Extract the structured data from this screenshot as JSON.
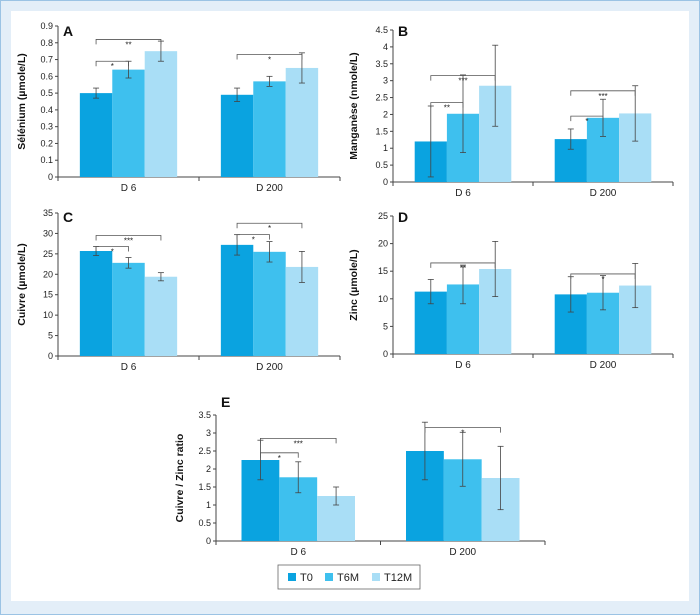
{
  "colors": {
    "T0": "#0aa3e0",
    "T6M": "#3ec0ee",
    "T12M": "#a9def6"
  },
  "legend": {
    "items": [
      "T0",
      "T6M",
      "T12M"
    ]
  },
  "chart_data": [
    {
      "panel": "A",
      "type": "bar",
      "ylabel": "Sélénium (µmole/L)",
      "ylim": [
        0,
        0.9
      ],
      "yticks": [
        "0",
        "0.1",
        "0.2",
        "0.3",
        "0.4",
        "0.5",
        "0.6",
        "0.7",
        "0.8",
        "0.9"
      ],
      "categories": [
        "D 6",
        "D 200"
      ],
      "series": [
        {
          "name": "T0",
          "values": [
            0.5,
            0.49
          ],
          "errors": [
            0.03,
            0.04
          ]
        },
        {
          "name": "T6M",
          "values": [
            0.64,
            0.57
          ],
          "errors": [
            0.05,
            0.03
          ]
        },
        {
          "name": "T12M",
          "values": [
            0.75,
            0.65
          ],
          "errors": [
            0.06,
            0.09
          ]
        }
      ],
      "brackets": [
        {
          "cat": 0,
          "from": 0,
          "to": 1,
          "level": 0.69,
          "label": "*"
        },
        {
          "cat": 0,
          "from": 0,
          "to": 2,
          "level": 0.82,
          "label": "**"
        },
        {
          "cat": 1,
          "from": 0,
          "to": 2,
          "level": 0.73,
          "label": "*"
        }
      ]
    },
    {
      "panel": "B",
      "type": "bar",
      "ylabel": "Manganèse (nmole/L)",
      "ylim": [
        0,
        4.5
      ],
      "yticks": [
        "0",
        "0.5",
        "1",
        "1.5",
        "2",
        "2.5",
        "3",
        "3.5",
        "4",
        "4.5"
      ],
      "categories": [
        "D 6",
        "D 200"
      ],
      "series": [
        {
          "name": "T0",
          "values": [
            1.2,
            1.27
          ],
          "errors": [
            1.05,
            0.3
          ]
        },
        {
          "name": "T6M",
          "values": [
            2.02,
            1.9
          ],
          "errors": [
            1.15,
            0.55
          ]
        },
        {
          "name": "T12M",
          "values": [
            2.85,
            2.03
          ],
          "errors": [
            1.2,
            0.82
          ]
        }
      ],
      "brackets": [
        {
          "cat": 0,
          "from": 0,
          "to": 1,
          "level": 2.35,
          "label": "**"
        },
        {
          "cat": 0,
          "from": 0,
          "to": 2,
          "level": 3.15,
          "label": "***"
        },
        {
          "cat": 1,
          "from": 0,
          "to": 1,
          "level": 1.95,
          "label": "*"
        },
        {
          "cat": 1,
          "from": 0,
          "to": 2,
          "level": 2.7,
          "label": "***"
        }
      ]
    },
    {
      "panel": "C",
      "type": "bar",
      "ylabel": "Cuivre (µmole/L)",
      "ylim": [
        0,
        35
      ],
      "yticks": [
        "0",
        "5",
        "10",
        "15",
        "20",
        "25",
        "30",
        "35"
      ],
      "categories": [
        "D 6",
        "D 200"
      ],
      "series": [
        {
          "name": "T0",
          "values": [
            25.7,
            27.2
          ],
          "errors": [
            1.1,
            2.5
          ]
        },
        {
          "name": "T6M",
          "values": [
            22.8,
            25.5
          ],
          "errors": [
            1.3,
            2.5
          ]
        },
        {
          "name": "T12M",
          "values": [
            19.4,
            21.8
          ],
          "errors": [
            1.0,
            3.8
          ]
        }
      ],
      "brackets": [
        {
          "cat": 0,
          "from": 0,
          "to": 1,
          "level": 26.8,
          "label": "*"
        },
        {
          "cat": 0,
          "from": 0,
          "to": 2,
          "level": 29.5,
          "label": "***"
        },
        {
          "cat": 1,
          "from": 0,
          "to": 1,
          "level": 29.7,
          "label": "*"
        },
        {
          "cat": 1,
          "from": 0,
          "to": 2,
          "level": 32.5,
          "label": "*"
        }
      ]
    },
    {
      "panel": "D",
      "type": "bar",
      "ylabel": "Zinc (µmole/L)",
      "ylim": [
        0,
        25
      ],
      "yticks": [
        "0",
        "5",
        "10",
        "15",
        "20",
        "25"
      ],
      "categories": [
        "D 6",
        "D 200"
      ],
      "series": [
        {
          "name": "T0",
          "values": [
            11.3,
            10.8
          ],
          "errors": [
            2.2,
            3.2
          ]
        },
        {
          "name": "T6M",
          "values": [
            12.6,
            11.1
          ],
          "errors": [
            3.5,
            3.1
          ]
        },
        {
          "name": "T12M",
          "values": [
            15.4,
            12.4
          ],
          "errors": [
            5.0,
            4.0
          ]
        }
      ],
      "brackets": [
        {
          "cat": 0,
          "from": 0,
          "to": 2,
          "level": 16.5,
          "label": "**"
        },
        {
          "cat": 1,
          "from": 0,
          "to": 2,
          "level": 14.5,
          "label": "*"
        }
      ]
    },
    {
      "panel": "E",
      "type": "bar",
      "ylabel": "Cuivre / Zinc ratio",
      "ylim": [
        0,
        3.5
      ],
      "yticks": [
        "0",
        "0.5",
        "1",
        "1.5",
        "2",
        "2.5",
        "3",
        "3.5"
      ],
      "categories": [
        "D 6",
        "D 200"
      ],
      "series": [
        {
          "name": "T0",
          "values": [
            2.25,
            2.5
          ],
          "errors": [
            0.55,
            0.8
          ]
        },
        {
          "name": "T6M",
          "values": [
            1.77,
            2.27
          ],
          "errors": [
            0.43,
            0.75
          ]
        },
        {
          "name": "T12M",
          "values": [
            1.25,
            1.75
          ],
          "errors": [
            0.25,
            0.88
          ]
        }
      ],
      "brackets": [
        {
          "cat": 0,
          "from": 0,
          "to": 1,
          "level": 2.45,
          "label": "*"
        },
        {
          "cat": 0,
          "from": 0,
          "to": 2,
          "level": 2.85,
          "label": "***"
        },
        {
          "cat": 1,
          "from": 0,
          "to": 2,
          "level": 3.15,
          "label": "*"
        }
      ]
    }
  ]
}
